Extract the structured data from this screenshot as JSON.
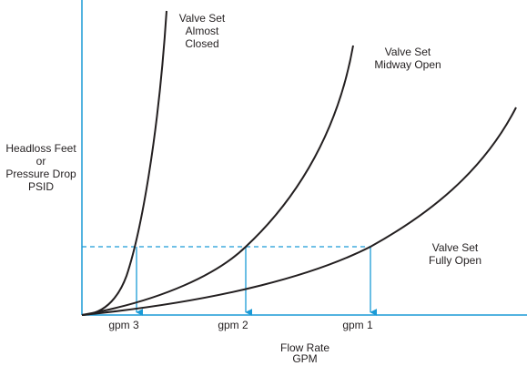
{
  "curves": [
    {
      "label": [
        "Valve Set",
        "Almost",
        "Closed"
      ]
    },
    {
      "label": [
        "Valve Set",
        "Midway Open"
      ]
    },
    {
      "label": [
        "Valve Set",
        "Fully Open"
      ]
    }
  ],
  "y_axis_label": [
    "Headloss Feet",
    "or",
    "Pressure Drop",
    "PSID"
  ],
  "x_axis_label": [
    "Flow Rate",
    "GPM"
  ],
  "flow_points": [
    "gpm 3",
    "gpm 2",
    "gpm 1"
  ]
}
